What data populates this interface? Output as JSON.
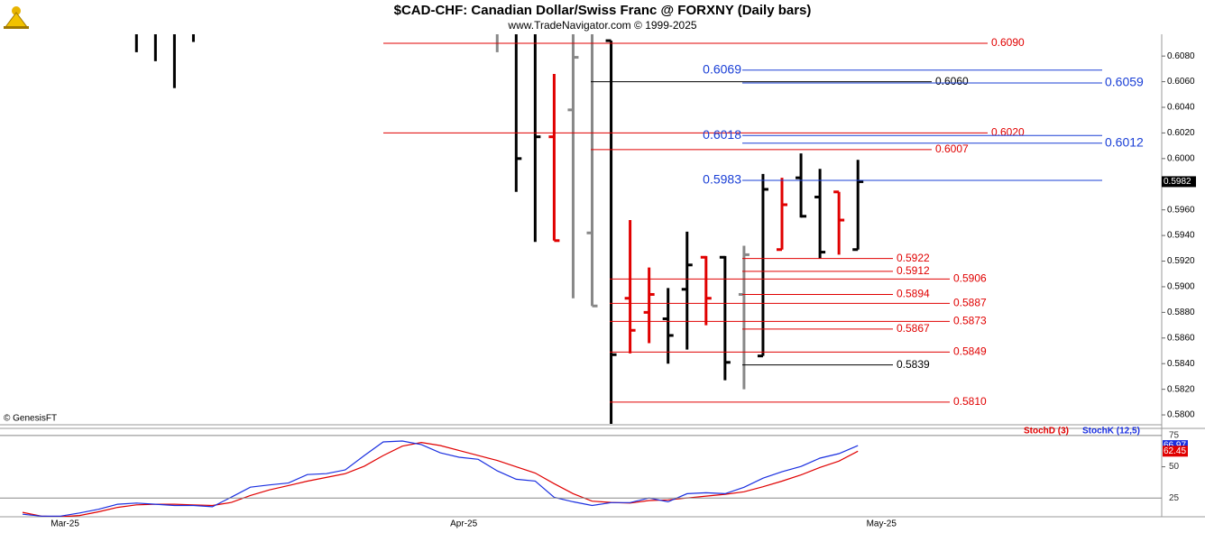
{
  "chart_data": [
    {
      "type": "ohlc",
      "title": "$CAD-CHF:  Canadian Dollar/Swiss Franc @ FORXNY  (Daily bars)",
      "subtitle": "www.TradeNavigator.com © 1999-2025",
      "annotation": "© GenesisFT",
      "open": [
        null,
        null,
        null,
        null,
        null,
        null,
        null,
        null,
        null,
        null,
        null,
        null,
        null,
        null,
        null,
        null,
        null,
        null,
        null,
        null,
        null,
        null,
        null,
        null,
        null,
        null,
        null,
        null,
        0.6017,
        0.6038,
        0.5942,
        0.6092,
        0.5891,
        0.588,
        0.5875,
        0.5898,
        0.5923,
        0.5923,
        0.5894,
        0.5846,
        0.5929,
        0.5985,
        0.597,
        0.5974,
        0.5929,
        null
      ],
      "high": [
        null,
        null,
        null,
        null,
        null,
        null,
        null,
        null,
        null,
        null,
        null,
        null,
        null,
        null,
        null,
        null,
        null,
        null,
        null,
        null,
        null,
        null,
        null,
        null,
        null,
        null,
        null,
        null,
        0.6066,
        null,
        null,
        0.6092,
        0.5952,
        0.5915,
        0.5899,
        0.5943,
        0.5924,
        0.5924,
        0.5932,
        0.5988,
        0.5985,
        0.6004,
        0.5992,
        0.5974,
        0.5999,
        null
      ],
      "low": [
        null,
        null,
        null,
        null,
        null,
        null,
        0.6083,
        0.6076,
        0.6055,
        0.6091,
        null,
        null,
        null,
        null,
        null,
        null,
        null,
        null,
        null,
        null,
        null,
        null,
        null,
        null,
        null,
        0.6083,
        0.5974,
        0.5935,
        0.5936,
        0.5891,
        0.5885,
        null,
        0.5848,
        0.5856,
        0.584,
        0.5851,
        0.587,
        0.5827,
        0.582,
        0.5846,
        0.5929,
        0.5954,
        0.5922,
        0.5925,
        0.5929,
        null
      ],
      "close": [
        null,
        null,
        null,
        null,
        null,
        null,
        null,
        null,
        null,
        null,
        null,
        null,
        null,
        null,
        null,
        null,
        null,
        null,
        null,
        null,
        null,
        null,
        null,
        null,
        null,
        null,
        0.6,
        0.6017,
        0.5936,
        0.6079,
        0.5885,
        0.5847,
        0.5866,
        0.5894,
        0.5862,
        0.5917,
        0.5891,
        0.5841,
        0.5925,
        0.5976,
        0.5964,
        0.5955,
        0.5927,
        0.5952,
        0.5982,
        null
      ],
      "colors": [
        null,
        null,
        null,
        null,
        null,
        null,
        "#000000",
        "#000000",
        "#000000",
        "#000000",
        null,
        null,
        null,
        null,
        null,
        null,
        null,
        null,
        null,
        null,
        null,
        null,
        null,
        null,
        null,
        "#888888",
        "#000000",
        "#000000",
        "#e00000",
        "#888888",
        "#888888",
        "#000000",
        "#e00000",
        "#e00000",
        "#000000",
        "#000000",
        "#e00000",
        "#000000",
        "#888888",
        "#000000",
        "#e00000",
        "#000000",
        "#000000",
        "#e00000",
        "#000000",
        null
      ],
      "levels": [
        {
          "value": 0.609,
          "label": "0.6090",
          "color": "#e00000"
        },
        {
          "value": 0.6069,
          "color": "#1a3fd6"
        },
        {
          "value": 0.606,
          "label": "0.6060",
          "color": "#000000"
        },
        {
          "value": 0.6059,
          "color": "#1a3fd6"
        },
        {
          "value": 0.602,
          "label": "0.6020",
          "color": "#e00000"
        },
        {
          "value": 0.6018,
          "color": "#1a3fd6"
        },
        {
          "value": 0.6012,
          "color": "#1a3fd6"
        },
        {
          "value": 0.6007,
          "color": "#e00000"
        },
        {
          "value": 0.5983,
          "color": "#1a3fd6"
        },
        {
          "value": 0.5922,
          "color": "#e00000"
        },
        {
          "value": 0.5912,
          "color": "#e00000"
        },
        {
          "value": 0.5906,
          "color": "#e00000"
        },
        {
          "value": 0.5894,
          "color": "#e00000"
        },
        {
          "value": 0.5887,
          "color": "#e00000"
        },
        {
          "value": 0.5873,
          "color": "#e00000"
        },
        {
          "value": 0.5867,
          "color": "#e00000"
        },
        {
          "value": 0.5849,
          "color": "#e00000"
        },
        {
          "value": 0.5839,
          "color": "#000000"
        },
        {
          "value": 0.581,
          "label": "0.5810",
          "color": "#e00000"
        }
      ],
      "ylim": [
        0.5793,
        0.6097
      ],
      "yticks": [
        {
          "value": 0.608,
          "label": "0.6080"
        },
        {
          "value": 0.606,
          "label": "0.6060"
        },
        {
          "value": 0.604,
          "label": "0.6040"
        },
        {
          "value": 0.602,
          "label": "0.6020"
        },
        {
          "value": 0.6,
          "label": "0.6000"
        },
        {
          "value": 0.598,
          "label": "0.5980"
        },
        {
          "value": 0.596,
          "label": "0.5960"
        },
        {
          "value": 0.594,
          "label": "0.5940"
        },
        {
          "value": 0.592,
          "label": "0.5920"
        },
        {
          "value": 0.59,
          "label": "0.5900"
        },
        {
          "value": 0.588,
          "label": "0.5880"
        },
        {
          "value": 0.586,
          "label": "0.5860"
        },
        {
          "value": 0.584,
          "label": "0.5840"
        },
        {
          "value": 0.582,
          "label": "0.5820"
        },
        {
          "value": 0.58,
          "label": "0.5800"
        }
      ]
    },
    {
      "type": "line",
      "categories": [
        null,
        null,
        "Mar-25",
        null,
        null,
        null,
        null,
        null,
        null,
        null,
        null,
        null,
        null,
        null,
        null,
        null,
        null,
        null,
        null,
        null,
        null,
        null,
        null,
        "Apr-25",
        null,
        null,
        null,
        null,
        null,
        null,
        null,
        null,
        null,
        null,
        null,
        null,
        null,
        null,
        null,
        null,
        null,
        null,
        null,
        null,
        null,
        "May-25"
      ],
      "series": [
        {
          "name": "StochD (3)",
          "color": "#e00000",
          "values": [
            13.5,
            10.5,
            10,
            11,
            14,
            17.5,
            19.5,
            20,
            20,
            19.5,
            19,
            21.5,
            27,
            31.5,
            35,
            38.5,
            41.5,
            44.5,
            50.5,
            59,
            66.5,
            69.5,
            67,
            63,
            59,
            55,
            50,
            45,
            36.5,
            28.5,
            22.5,
            21.5,
            21,
            23,
            23.5,
            25,
            26.5,
            28,
            30,
            34,
            38.5,
            43.5,
            49.5,
            54.5,
            62.45,
            null
          ]
        },
        {
          "name": "StochK (12,5)",
          "color": "#1a2fe0",
          "values": [
            12,
            10.5,
            10.5,
            13,
            16,
            20,
            21,
            20,
            19,
            19,
            18,
            25.7,
            33.7,
            35.5,
            37,
            43.8,
            44.5,
            47.5,
            59,
            69.9,
            70.6,
            67.8,
            61.2,
            57.6,
            56,
            46.7,
            40,
            38.6,
            25.6,
            22,
            19,
            21.3,
            21.3,
            25,
            22,
            28.5,
            29.2,
            28.5,
            33.6,
            40.9,
            46,
            50.3,
            56.9,
            60.5,
            66.97,
            null
          ]
        }
      ],
      "ylim": [
        10,
        80
      ],
      "yticks": [
        75,
        50,
        25
      ]
    }
  ]
}
